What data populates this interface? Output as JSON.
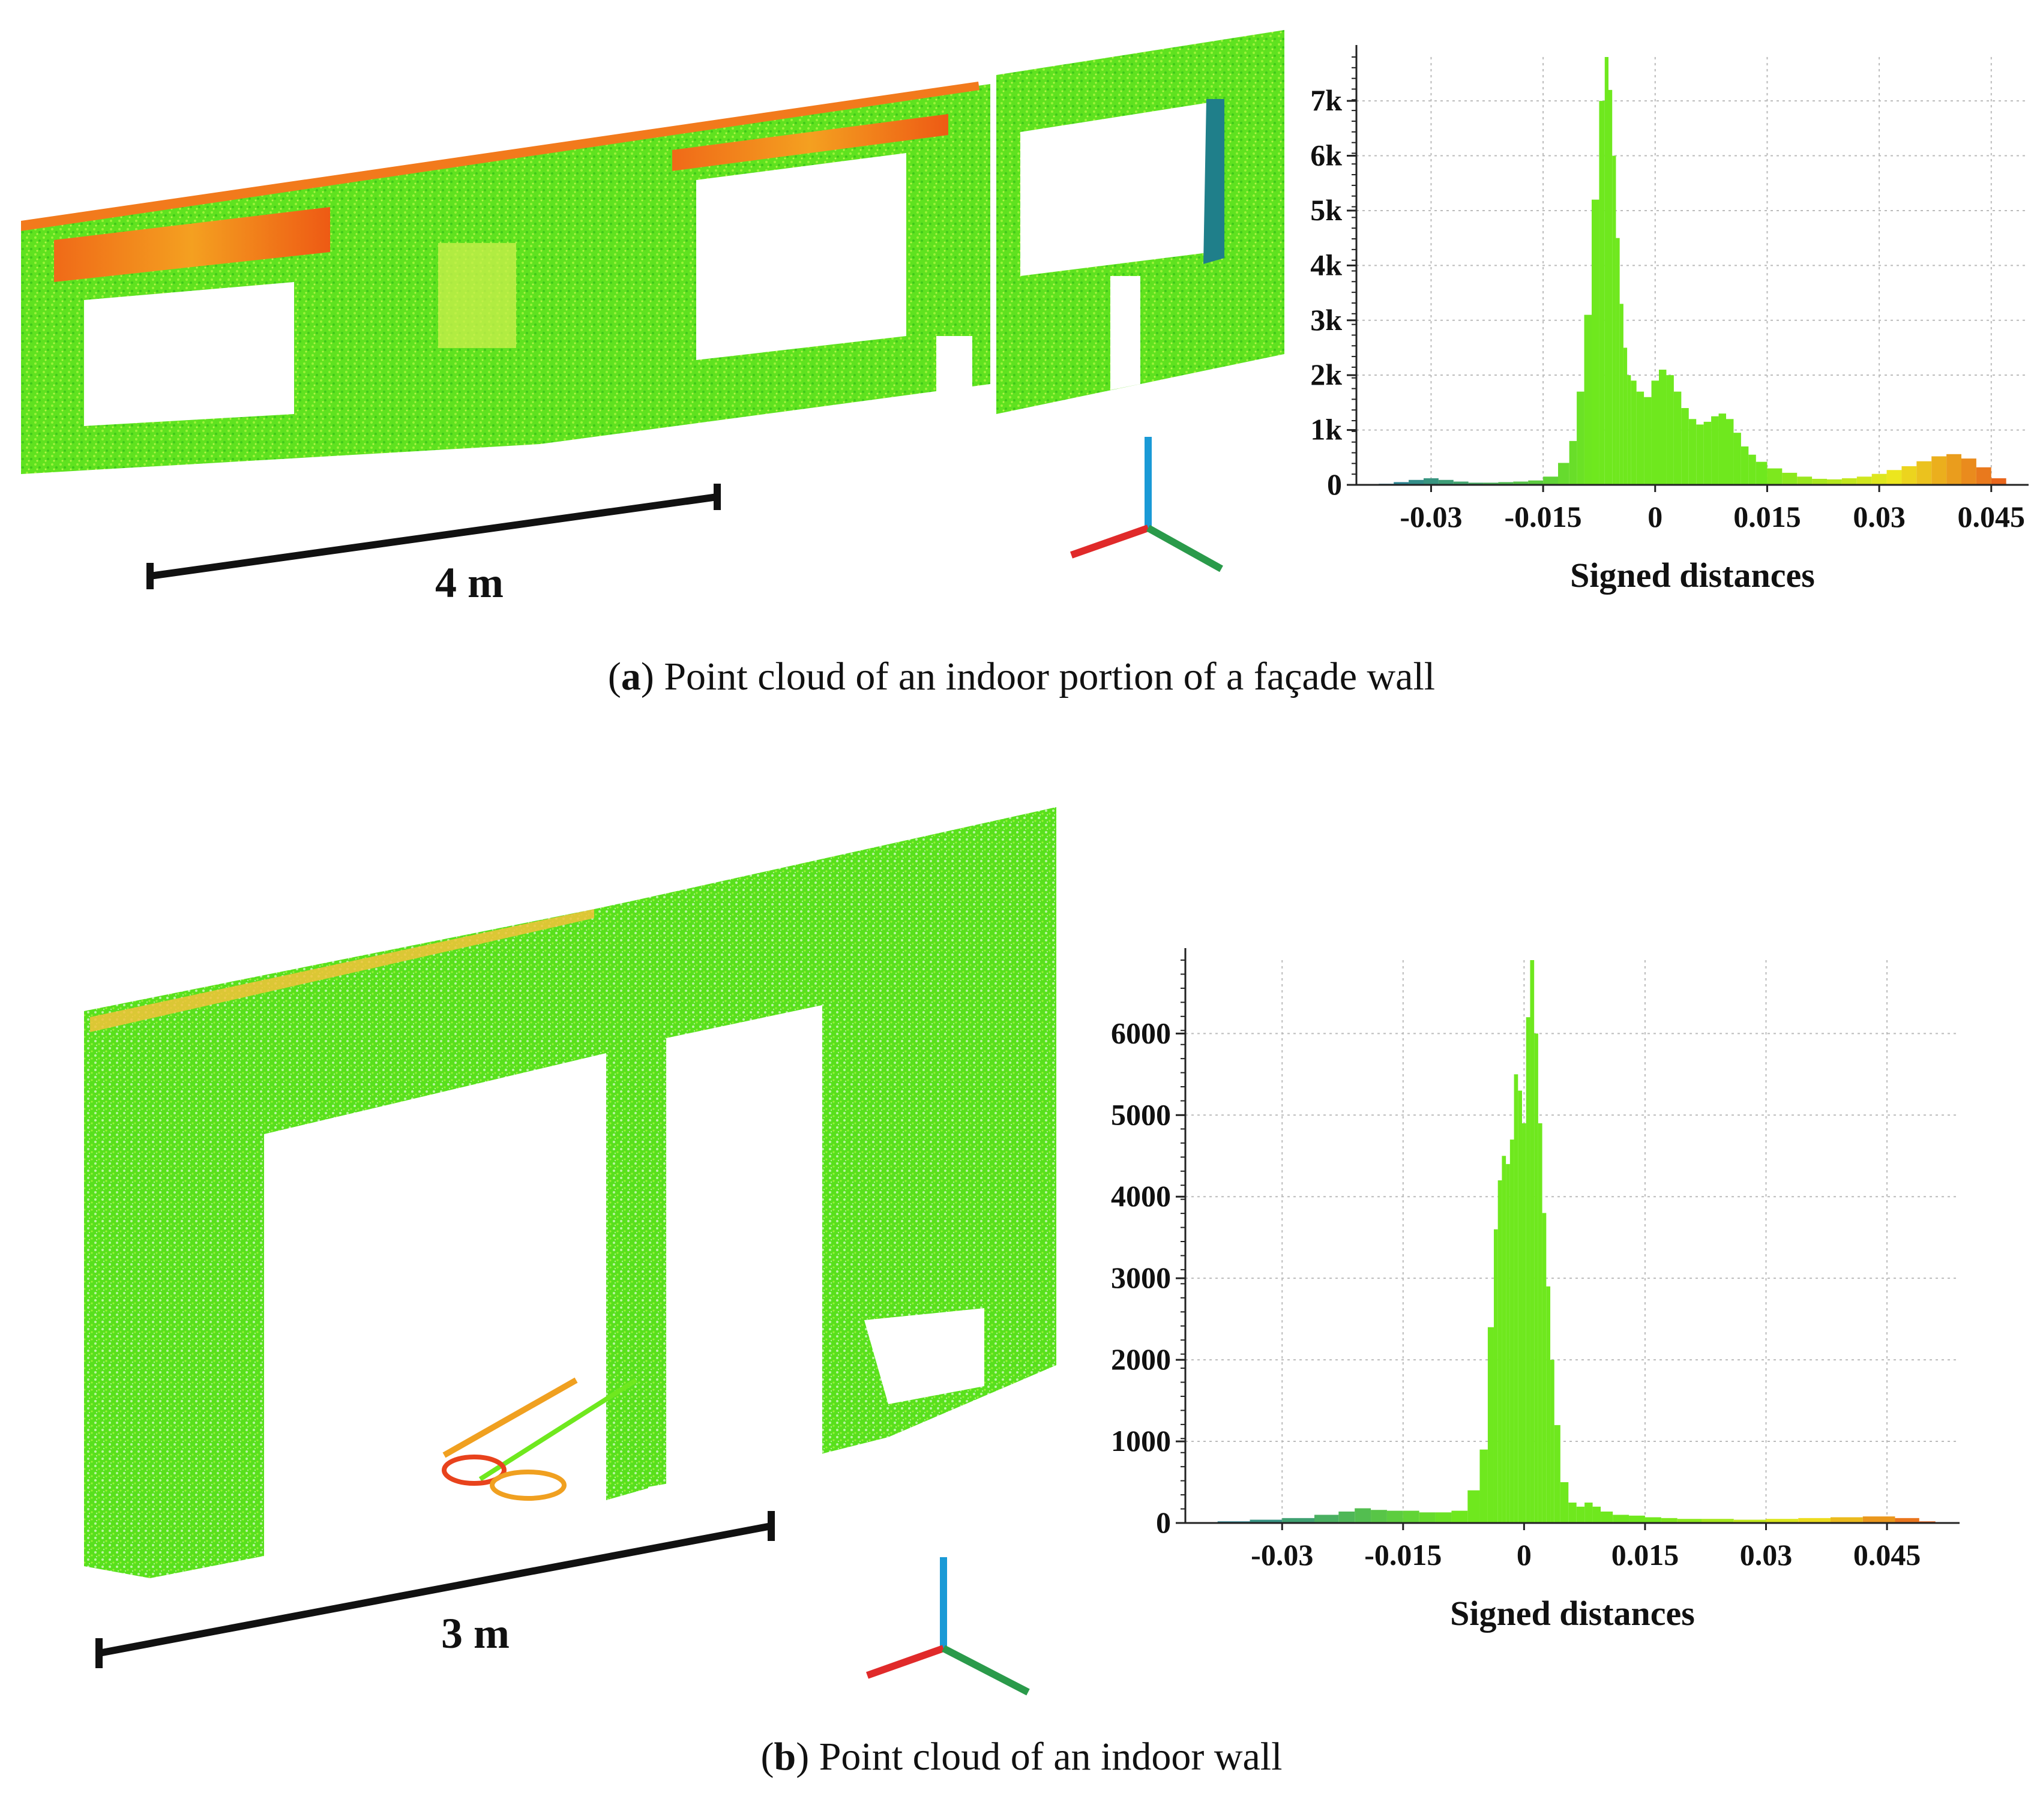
{
  "panels": [
    {
      "id": "a",
      "caption_letter": "a",
      "caption_text": "Point cloud of an indoor portion of a façade wall",
      "scale_label": "4 m",
      "histogram": {
        "type": "bar",
        "xlabel": "Signed distances",
        "x_ticks": [
          "-0.03",
          "-0.015",
          "0",
          "0.015",
          "0.03",
          "0.045"
        ],
        "x_tick_values": [
          -0.03,
          -0.015,
          0,
          0.015,
          0.03,
          0.045
        ],
        "y_ticks": [
          "0",
          "1k",
          "2k",
          "3k",
          "4k",
          "5k",
          "6k",
          "7k"
        ],
        "y_tick_values": [
          0,
          1000,
          2000,
          3000,
          4000,
          5000,
          6000,
          7000
        ],
        "xlim": [
          -0.04,
          0.05
        ],
        "ylim": [
          0,
          7800
        ],
        "grid": true,
        "x": [
          -0.038,
          -0.036,
          -0.034,
          -0.032,
          -0.03,
          -0.028,
          -0.026,
          -0.024,
          -0.022,
          -0.02,
          -0.018,
          -0.016,
          -0.014,
          -0.012,
          -0.011,
          -0.01,
          -0.009,
          -0.008,
          -0.007,
          -0.0065,
          -0.006,
          -0.0055,
          -0.005,
          -0.0045,
          -0.004,
          -0.0035,
          -0.003,
          -0.002,
          -0.001,
          0.0,
          0.001,
          0.002,
          0.003,
          0.004,
          0.005,
          0.006,
          0.007,
          0.008,
          0.009,
          0.01,
          0.011,
          0.012,
          0.013,
          0.014,
          0.016,
          0.018,
          0.02,
          0.022,
          0.024,
          0.026,
          0.028,
          0.03,
          0.032,
          0.034,
          0.036,
          0.038,
          0.04,
          0.042,
          0.044,
          0.046
        ],
        "y": [
          0,
          20,
          50,
          90,
          120,
          90,
          60,
          40,
          40,
          50,
          60,
          80,
          150,
          400,
          800,
          1700,
          3100,
          5200,
          7000,
          7800,
          7200,
          6000,
          4500,
          3300,
          2500,
          2000,
          1900,
          1700,
          1600,
          1900,
          2100,
          2000,
          1700,
          1400,
          1200,
          1100,
          1150,
          1250,
          1300,
          1200,
          950,
          700,
          550,
          420,
          300,
          220,
          150,
          110,
          100,
          120,
          150,
          200,
          270,
          340,
          430,
          520,
          560,
          480,
          320,
          120
        ],
        "colors": {
          "low": "#1f6fae",
          "mid": "#6fe81e",
          "high": "#e8421c"
        }
      }
    },
    {
      "id": "b",
      "caption_letter": "b",
      "caption_text": "Point cloud of an indoor wall",
      "scale_label": "3 m",
      "histogram": {
        "type": "bar",
        "xlabel": "Signed distances",
        "x_ticks": [
          "-0.03",
          "-0.015",
          "0",
          "0.015",
          "0.03",
          "0.045"
        ],
        "x_tick_values": [
          -0.03,
          -0.015,
          0,
          0.015,
          0.03,
          0.045
        ],
        "y_ticks": [
          "0",
          "1000",
          "2000",
          "3000",
          "4000",
          "5000",
          "6000"
        ],
        "y_tick_values": [
          0,
          1000,
          2000,
          3000,
          4000,
          5000,
          6000
        ],
        "xlim": [
          -0.042,
          0.054
        ],
        "ylim": [
          0,
          6900
        ],
        "grid": true,
        "x": [
          -0.04,
          -0.036,
          -0.032,
          -0.028,
          -0.024,
          -0.022,
          -0.02,
          -0.018,
          -0.016,
          -0.014,
          -0.012,
          -0.01,
          -0.008,
          -0.006,
          -0.005,
          -0.004,
          -0.0035,
          -0.003,
          -0.0025,
          -0.002,
          -0.0015,
          -0.001,
          -0.0005,
          0.0,
          0.0005,
          0.001,
          0.0015,
          0.002,
          0.0025,
          0.003,
          0.0035,
          0.004,
          0.005,
          0.006,
          0.007,
          0.008,
          0.009,
          0.01,
          0.012,
          0.014,
          0.016,
          0.018,
          0.02,
          0.024,
          0.028,
          0.032,
          0.036,
          0.04,
          0.044,
          0.048,
          0.05
        ],
        "y": [
          10,
          20,
          40,
          60,
          100,
          140,
          180,
          160,
          150,
          150,
          130,
          130,
          150,
          400,
          900,
          2400,
          3600,
          4200,
          4500,
          4400,
          4700,
          5500,
          5300,
          4900,
          6200,
          6900,
          6000,
          4900,
          3800,
          2900,
          2000,
          1200,
          500,
          250,
          200,
          250,
          200,
          140,
          100,
          90,
          70,
          60,
          50,
          50,
          40,
          50,
          60,
          70,
          80,
          60,
          20
        ],
        "colors": {
          "low": "#1f6fae",
          "mid": "#6fe81e",
          "high": "#e8421c"
        }
      }
    }
  ]
}
